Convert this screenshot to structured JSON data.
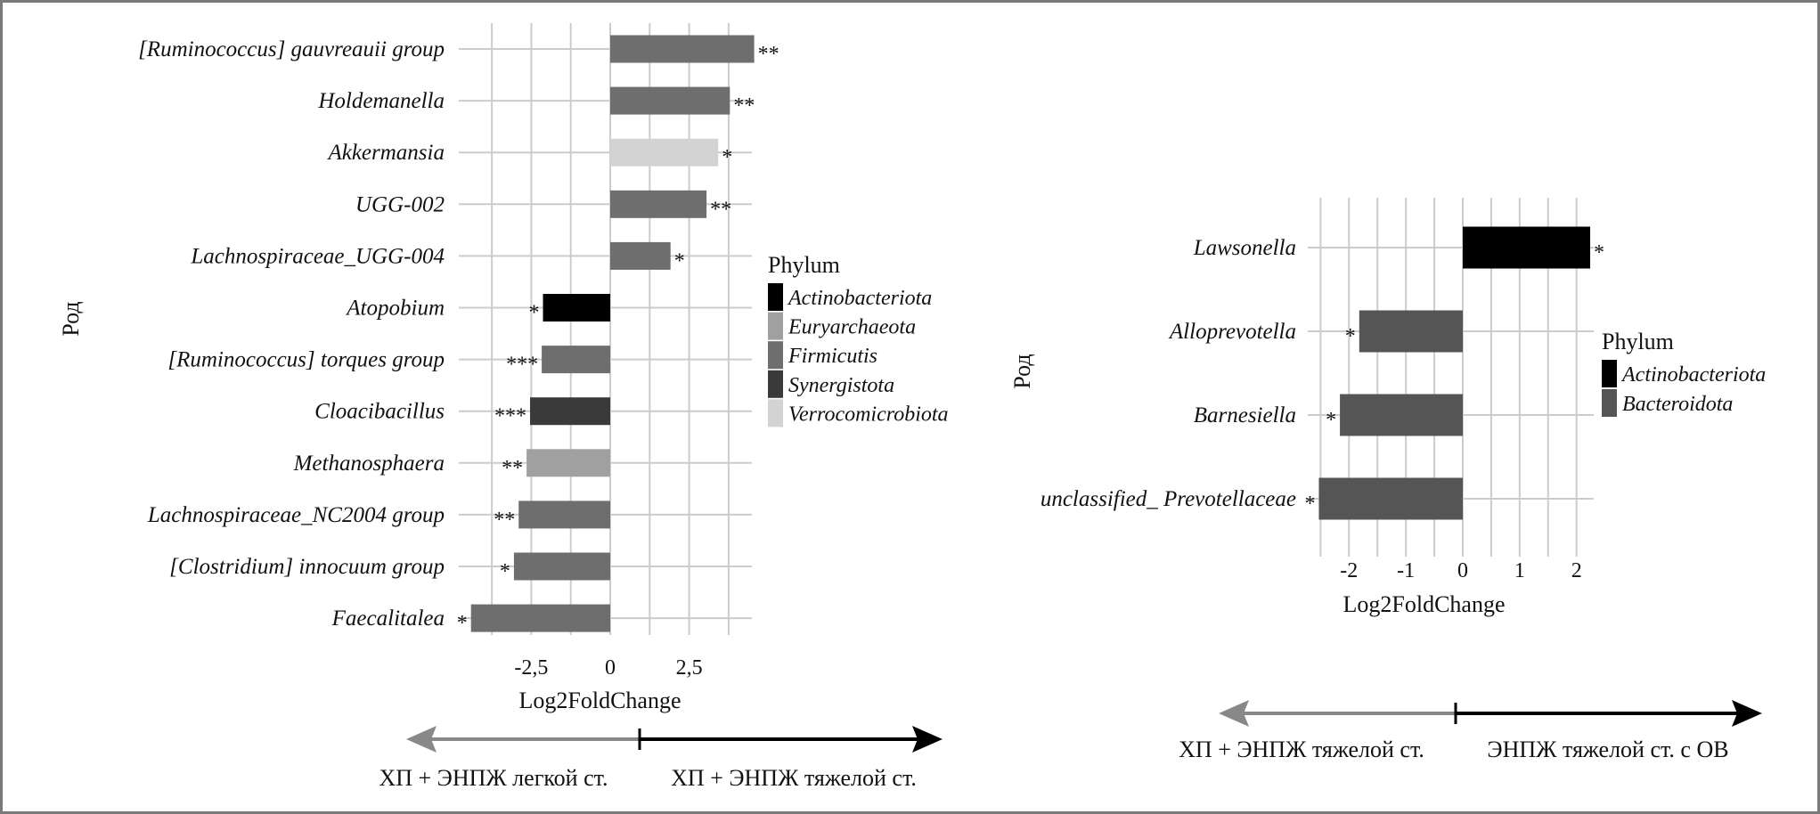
{
  "chart_data": [
    {
      "type": "bar",
      "orientation": "horizontal",
      "xlabel": "Log2FoldChange",
      "ylabel": "Род",
      "xlim": [
        -4.8,
        4.6
      ],
      "xticks": [
        -2.5,
        0,
        2.5
      ],
      "xtick_labels": [
        "-2,5",
        "0",
        "2,5"
      ],
      "grid": true,
      "legend": {
        "title": "Phylum",
        "position": "right",
        "entries": [
          {
            "name": "Actinobacteriota",
            "color": "#000000"
          },
          {
            "name": "Euryarchaeota",
            "color": "#a0a0a0"
          },
          {
            "name": "Firmicutis",
            "color": "#6e6e6e"
          },
          {
            "name": "Synergistota",
            "color": "#3a3a3a"
          },
          {
            "name": "Verrocomicrobiota",
            "color": "#d3d3d3"
          }
        ]
      },
      "categories": [
        "[Ruminococcus] gauvreauii group",
        "Holdemanella",
        "Akkermansia",
        "UGG-002",
        "Lachnospiraceae_UGG-004",
        "Atopobium",
        "[Ruminococcus] torques group",
        "Cloacibacillus",
        "Methanosphaera",
        "Lachnospiraceae_NC2004 group",
        "[Clostridium] innocuum group",
        "Faecalitalea"
      ],
      "values": [
        4.56,
        3.79,
        3.42,
        3.05,
        1.91,
        -2.13,
        -2.17,
        -2.54,
        -2.65,
        -2.9,
        -3.05,
        -4.41
      ],
      "phylum": [
        "Firmicutis",
        "Firmicutis",
        "Verrocomicrobiota",
        "Firmicutis",
        "Firmicutis",
        "Actinobacteriota",
        "Firmicutis",
        "Synergistota",
        "Euryarchaeota",
        "Firmicutis",
        "Firmicutis",
        "Firmicutis"
      ],
      "significance": [
        "**",
        "**",
        "*",
        "**",
        "*",
        "*",
        "***",
        "***",
        "**",
        "**",
        "*",
        "*"
      ],
      "direction_labels": {
        "left": "ХП + ЭНПЖ легкой ст.",
        "right": "ХП + ЭНПЖ тяжелой ст."
      }
    },
    {
      "type": "bar",
      "orientation": "horizontal",
      "xlabel": "Log2FoldChange",
      "ylabel": "Род",
      "xlim": [
        -2.53,
        2.3
      ],
      "xticks": [
        -2,
        -1,
        0,
        1,
        2
      ],
      "xtick_labels": [
        "-2",
        "-1",
        "0",
        "1",
        "2"
      ],
      "grid": true,
      "legend": {
        "title": "Phylum",
        "position": "right",
        "entries": [
          {
            "name": "Actinobacteriota",
            "color": "#000000"
          },
          {
            "name": "Bacteroidota",
            "color": "#555555"
          }
        ]
      },
      "categories": [
        "Lawsonella",
        "Alloprevotella",
        "Barnesiella",
        "unclassified_ Prevotellaceae"
      ],
      "values": [
        2.24,
        -1.82,
        -2.16,
        -2.53
      ],
      "phylum": [
        "Actinobacteriota",
        "Bacteroidota",
        "Bacteroidota",
        "Bacteroidota"
      ],
      "significance": [
        "*",
        "*",
        "*",
        "*"
      ],
      "direction_labels": {
        "left": "ХП + ЭНПЖ тяжелой ст.",
        "right": "ЭНПЖ тяжелой ст. с ОВ"
      }
    }
  ]
}
